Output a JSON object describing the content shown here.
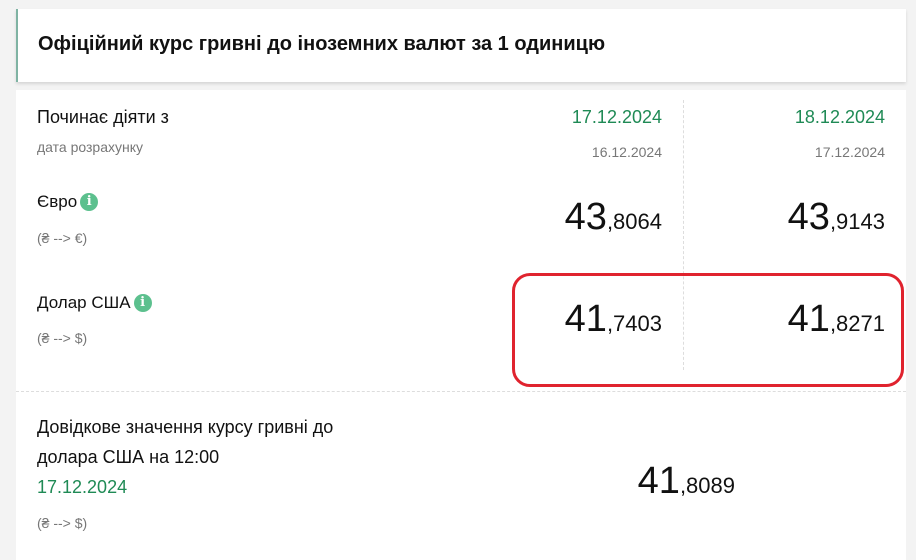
{
  "header": {
    "title": "Офіційний курс гривні до іноземних валют за 1 одиницю"
  },
  "table": {
    "starts_label": "Починає діяти з",
    "calc_label": "дата розрахунку",
    "columns": [
      {
        "date": "17.12.2024",
        "calc_date": "16.12.2024"
      },
      {
        "date": "18.12.2024",
        "calc_date": "17.12.2024"
      }
    ],
    "rows": [
      {
        "name": "Євро",
        "direction": "(₴ --> €)",
        "icon": "info-icon",
        "values": [
          {
            "int": "43",
            "frac": ",8064"
          },
          {
            "int": "43",
            "frac": ",9143"
          }
        ]
      },
      {
        "name": "Долар США",
        "direction": "(₴ --> $)",
        "icon": "info-icon",
        "values": [
          {
            "int": "41",
            "frac": ",7403"
          },
          {
            "int": "41",
            "frac": ",8271"
          }
        ],
        "highlighted": true
      }
    ]
  },
  "reference": {
    "line1": "Довідкове значення курсу гривні до",
    "line2": "долара США на 12:00",
    "date": "17.12.2024",
    "direction": "(₴ --> $)",
    "int": "41",
    "frac": ",8089"
  },
  "colors": {
    "accent": "#1f8a55",
    "highlight": "#e0232e",
    "info": "#5cc08e"
  }
}
